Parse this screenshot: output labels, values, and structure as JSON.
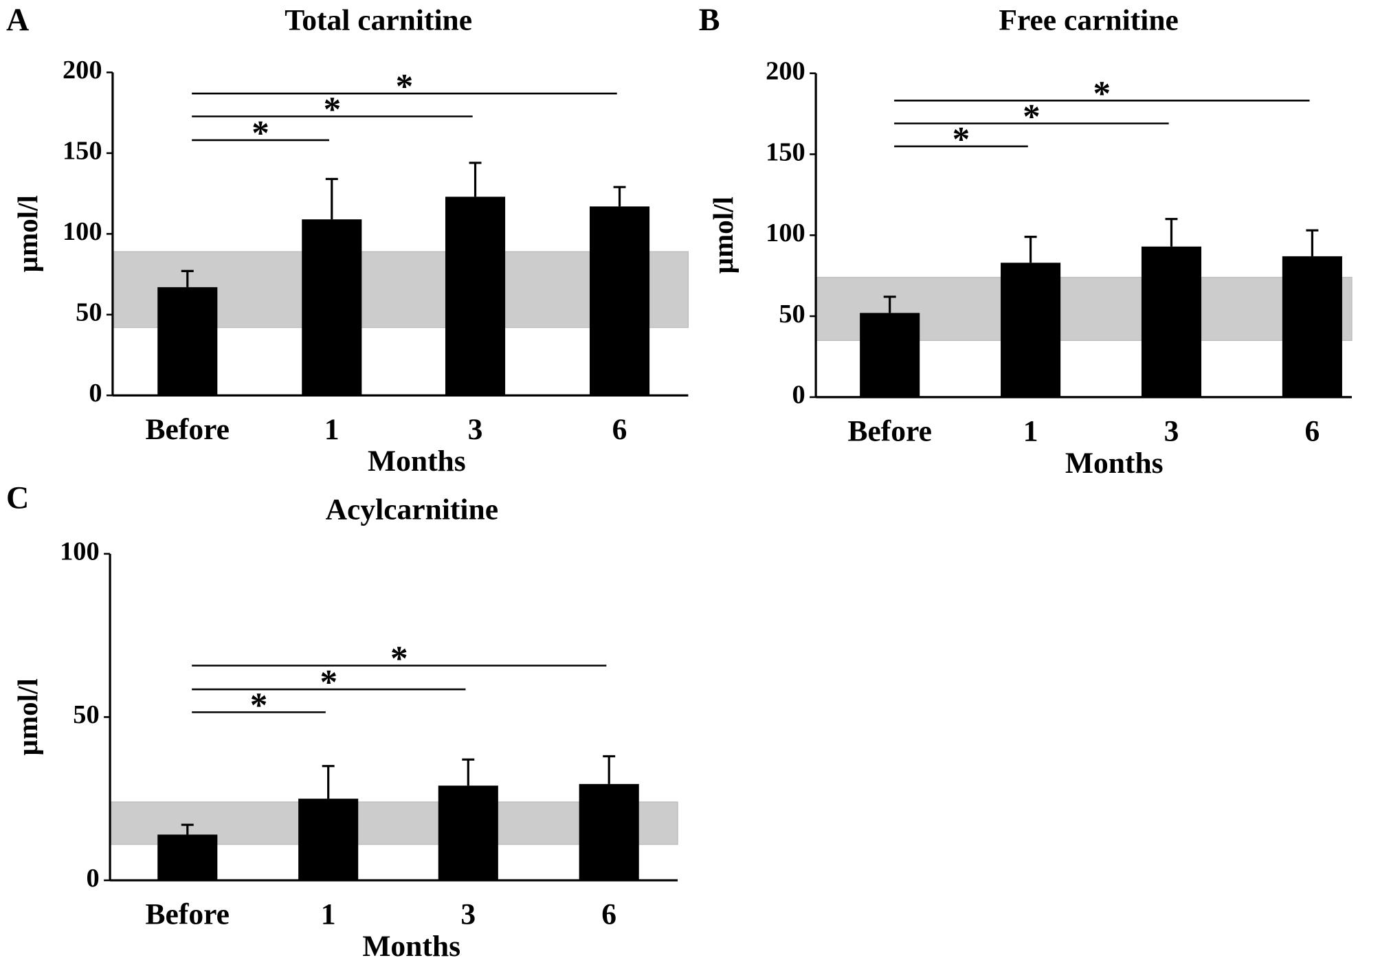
{
  "chart_data": [
    {
      "type": "bar",
      "panel": "A",
      "title": "Total carnitine",
      "ylabel": "µmol/l",
      "xlabel": "Months",
      "categories": [
        "Before",
        "1",
        "3",
        "6"
      ],
      "values": [
        67,
        109,
        123,
        117
      ],
      "errors": [
        10,
        25,
        21,
        12
      ],
      "color": "#000000",
      "ylim": [
        0,
        200
      ],
      "yticks": [
        0,
        50,
        100,
        150,
        200
      ],
      "reference_range": [
        42,
        89
      ],
      "reference_color": "#cccccc",
      "comparisons": [
        {
          "from": "Before",
          "to": "1",
          "label": "*"
        },
        {
          "from": "Before",
          "to": "3",
          "label": "*"
        },
        {
          "from": "Before",
          "to": "6",
          "label": "*"
        }
      ]
    },
    {
      "type": "bar",
      "panel": "B",
      "title": "Free carnitine",
      "ylabel": "µmol/l",
      "xlabel": "Months",
      "categories": [
        "Before",
        "1",
        "3",
        "6"
      ],
      "values": [
        52,
        83,
        93,
        87
      ],
      "errors": [
        10,
        16,
        17,
        16
      ],
      "color": "#000000",
      "ylim": [
        0,
        200
      ],
      "yticks": [
        0,
        50,
        100,
        150,
        200
      ],
      "reference_range": [
        35,
        74
      ],
      "reference_color": "#cccccc",
      "comparisons": [
        {
          "from": "Before",
          "to": "1",
          "label": "*"
        },
        {
          "from": "Before",
          "to": "3",
          "label": "*"
        },
        {
          "from": "Before",
          "to": "6",
          "label": "*"
        }
      ]
    },
    {
      "type": "bar",
      "panel": "C",
      "title": "Acylcarnitine",
      "ylabel": "µmol/l",
      "xlabel": "Months",
      "categories": [
        "Before",
        "1",
        "3",
        "6"
      ],
      "values": [
        14,
        25,
        29,
        29.5
      ],
      "errors": [
        3,
        10,
        8,
        8.5
      ],
      "color": "#000000",
      "ylim": [
        0,
        100
      ],
      "yticks": [
        0,
        50,
        100
      ],
      "reference_range": [
        11,
        24
      ],
      "reference_color": "#cccccc",
      "comparisons": [
        {
          "from": "Before",
          "to": "1",
          "label": "*"
        },
        {
          "from": "Before",
          "to": "3",
          "label": "*"
        },
        {
          "from": "Before",
          "to": "6",
          "label": "*"
        }
      ]
    }
  ]
}
